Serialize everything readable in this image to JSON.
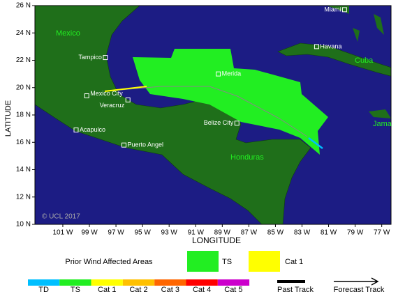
{
  "map": {
    "x_title": "LONGITUDE",
    "y_title": "LATITUDE",
    "xlim": [
      -103.1,
      -76.3
    ],
    "ylim": [
      10,
      26
    ],
    "xticks": [
      {
        "value": -101,
        "label": "101 W"
      },
      {
        "value": -99,
        "label": "99 W"
      },
      {
        "value": -97,
        "label": "97 W"
      },
      {
        "value": -95,
        "label": "95 W"
      },
      {
        "value": -93,
        "label": "93 W"
      },
      {
        "value": -91,
        "label": "91 W"
      },
      {
        "value": -89,
        "label": "89 W"
      },
      {
        "value": -87,
        "label": "87 W"
      },
      {
        "value": -85,
        "label": "85 W"
      },
      {
        "value": -83,
        "label": "83 W"
      },
      {
        "value": -81,
        "label": "81 W"
      },
      {
        "value": -79,
        "label": "79 W"
      },
      {
        "value": -77,
        "label": "77 W"
      }
    ],
    "yticks": [
      {
        "value": 10,
        "label": "10 N"
      },
      {
        "value": 12,
        "label": "12 N"
      },
      {
        "value": 14,
        "label": "14 N"
      },
      {
        "value": 16,
        "label": "16 N"
      },
      {
        "value": 18,
        "label": "18 N"
      },
      {
        "value": 20,
        "label": "20 N"
      },
      {
        "value": 22,
        "label": "22 N"
      },
      {
        "value": 24,
        "label": "24 N"
      },
      {
        "value": 26,
        "label": "26 N"
      }
    ],
    "cities": [
      {
        "name": "Miami",
        "lon": -79.8,
        "lat": 25.7
      },
      {
        "name": "Havana",
        "lon": -81.9,
        "lat": 23.0
      },
      {
        "name": "Tampico",
        "lon": -97.8,
        "lat": 22.2
      },
      {
        "name": "Merida",
        "lon": -89.3,
        "lat": 21.0
      },
      {
        "name": "Mexico City",
        "lon": -99.2,
        "lat": 19.4
      },
      {
        "name": "Veracruz",
        "lon": -96.1,
        "lat": 19.1
      },
      {
        "name": "Belize City",
        "lon": -87.9,
        "lat": 17.4
      },
      {
        "name": "Acapulco",
        "lon": -100.0,
        "lat": 16.9
      },
      {
        "name": "Puerto Angel",
        "lon": -96.4,
        "lat": 15.8
      }
    ],
    "regions": [
      "Mexico",
      "Cuba",
      "Jama",
      "Honduras"
    ],
    "copyright": "© UCL 2017"
  },
  "legend": {
    "prior_title": "Prior Wind Affected Areas",
    "areas": [
      {
        "name": "TS",
        "color": "#22ee22"
      },
      {
        "name": "Cat 1",
        "color": "#ffff00"
      }
    ],
    "scale": [
      {
        "name": "TD",
        "color": "#00bfff"
      },
      {
        "name": "TS",
        "color": "#22ee22"
      },
      {
        "name": "Cat 1",
        "color": "#ffff00"
      },
      {
        "name": "Cat 2",
        "color": "#ffc000"
      },
      {
        "name": "Cat 3",
        "color": "#ff6600"
      },
      {
        "name": "Cat 4",
        "color": "#ff0000"
      },
      {
        "name": "Cat 5",
        "color": "#cc00cc"
      }
    ],
    "tracks": [
      "Past Track",
      "Forecast Track"
    ]
  }
}
